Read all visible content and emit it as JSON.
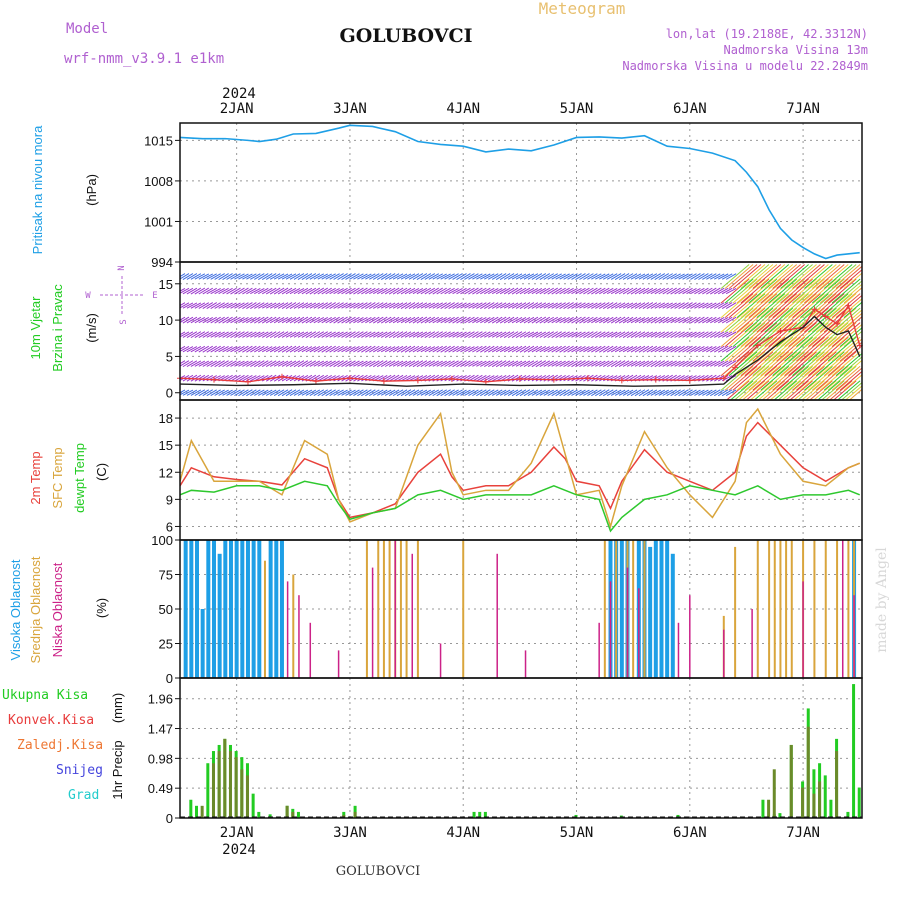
{
  "header": {
    "model_label": "Model",
    "model_name": "wrf-nmm_v3.9.1 e1km",
    "title": "GOLUBOVCI",
    "subtitle": "Meteogram",
    "lonlat": "lon,lat (19.2188E, 42.3312N)",
    "elevation": "Nadmorska Visina 13m",
    "model_elevation": "Nadmorska Visina u modelu 22.2849m",
    "footer_title": "GOLUBOVCI",
    "watermark": "made by Angel",
    "year": "2024"
  },
  "colors": {
    "pressure": "#1e9fe6",
    "temp2m": "#e8423c",
    "sfc_temp": "#d9a53c",
    "dewpoint": "#2ec82e",
    "wind_label": "#22cc22",
    "wind_speed": "#e83c3c",
    "wind_gust": "#222222",
    "barb": "#9933cc",
    "cloud_high": "#1e9fe6",
    "cloud_mid": "#d9a53c",
    "cloud_low": "#cc2288",
    "precip_total": "#22cc22",
    "precip_conv": "#e83c3c",
    "precip_frozen": "#ee7733",
    "snow": "#4444dd",
    "grad": "#22cccc"
  },
  "chart_data": [
    {
      "type": "line",
      "panel": "pressure",
      "ylabel": "Pritisak na nivou mora",
      "unit": "(hPa)",
      "ylim": [
        994,
        1018
      ],
      "yticks": [
        994,
        1001,
        1008,
        1015
      ],
      "x_days": [
        1.5,
        1.7,
        1.9,
        2.1,
        2.2,
        2.35,
        2.5,
        2.7,
        2.9,
        3.0,
        3.2,
        3.4,
        3.6,
        3.8,
        4.0,
        4.2,
        4.4,
        4.6,
        4.8,
        5.0,
        5.2,
        5.4,
        5.6,
        5.8,
        6.0,
        6.2,
        6.4,
        6.5,
        6.6,
        6.7,
        6.8,
        6.9,
        7.0,
        7.1,
        7.2,
        7.3,
        7.5
      ],
      "values": [
        1015.5,
        1015.3,
        1015.3,
        1015.0,
        1014.8,
        1015.2,
        1016.1,
        1016.2,
        1017.1,
        1017.6,
        1017.4,
        1016.5,
        1014.8,
        1014.3,
        1014.0,
        1013.0,
        1013.5,
        1013.2,
        1014.2,
        1015.5,
        1015.6,
        1015.4,
        1015.8,
        1014.0,
        1013.6,
        1012.8,
        1011.5,
        1009.5,
        1007.0,
        1003.0,
        999.8,
        997.8,
        996.5,
        995.4,
        994.6,
        995.2,
        995.6
      ]
    },
    {
      "type": "line",
      "panel": "wind",
      "ylabel": "10m Vjetar Brzina i Pravac",
      "unit": "(m/s)",
      "compass": {
        "n": "N",
        "e": "E",
        "w": "W",
        "s": "S"
      },
      "ylim": [
        -1,
        18
      ],
      "yticks": [
        0,
        5,
        10,
        15
      ],
      "series": [
        {
          "name": "speed",
          "x_days": [
            1.5,
            1.8,
            2.1,
            2.4,
            2.7,
            3.0,
            3.3,
            3.6,
            3.9,
            4.2,
            4.5,
            4.8,
            5.1,
            5.4,
            5.7,
            6.0,
            6.3,
            6.4,
            6.6,
            6.8,
            7.0,
            7.1,
            7.2,
            7.3,
            7.4,
            7.5
          ],
          "values": [
            2.0,
            1.8,
            1.5,
            2.2,
            1.6,
            2.0,
            1.6,
            1.7,
            1.9,
            1.5,
            1.9,
            1.8,
            2.0,
            1.7,
            1.8,
            1.7,
            2.0,
            3.5,
            6.5,
            8.5,
            9.0,
            11.5,
            10.5,
            9.5,
            12.0,
            6.5
          ]
        },
        {
          "name": "gust",
          "x_days": [
            1.5,
            2.0,
            2.5,
            3.0,
            3.5,
            4.0,
            4.5,
            5.0,
            5.5,
            6.0,
            6.3,
            6.4,
            6.6,
            6.8,
            7.0,
            7.1,
            7.2,
            7.3,
            7.4,
            7.5
          ],
          "values": [
            1.2,
            1.0,
            1.1,
            1.3,
            0.9,
            1.2,
            1.0,
            1.1,
            0.9,
            1.0,
            1.2,
            2.5,
            4.5,
            7.0,
            9.0,
            10.5,
            9.0,
            8.0,
            8.5,
            5.0
          ]
        }
      ]
    },
    {
      "type": "line",
      "panel": "temperature",
      "ylabels": [
        "2m Temp",
        "SFC Temp",
        "dewpt Temp"
      ],
      "unit": "(C)",
      "ylim": [
        4.5,
        20
      ],
      "yticks": [
        6,
        9,
        12,
        15,
        18
      ],
      "series": [
        {
          "name": "2m Temp",
          "x_days": [
            1.5,
            1.6,
            1.8,
            2.0,
            2.2,
            2.4,
            2.6,
            2.8,
            2.9,
            3.0,
            3.2,
            3.4,
            3.6,
            3.8,
            3.9,
            4.0,
            4.2,
            4.4,
            4.6,
            4.8,
            4.9,
            5.0,
            5.2,
            5.3,
            5.4,
            5.6,
            5.8,
            6.0,
            6.2,
            6.4,
            6.5,
            6.6,
            6.8,
            7.0,
            7.2,
            7.4,
            7.5
          ],
          "values": [
            10.5,
            12.5,
            11.5,
            11.2,
            11.0,
            10.6,
            13.5,
            12.5,
            9.0,
            7.0,
            7.5,
            8.5,
            12.0,
            14.0,
            11.5,
            10.0,
            10.5,
            10.5,
            12.0,
            14.8,
            13.5,
            11.0,
            10.5,
            8.0,
            11.0,
            14.5,
            12.0,
            11.0,
            10.0,
            12.0,
            16.0,
            17.5,
            15.0,
            12.5,
            11.0,
            12.5,
            13.0
          ]
        },
        {
          "name": "SFC Temp",
          "x_days": [
            1.5,
            1.6,
            1.8,
            2.0,
            2.2,
            2.4,
            2.6,
            2.8,
            2.9,
            3.0,
            3.2,
            3.4,
            3.6,
            3.8,
            3.9,
            4.0,
            4.2,
            4.4,
            4.6,
            4.8,
            4.9,
            5.0,
            5.2,
            5.3,
            5.4,
            5.6,
            5.8,
            6.0,
            6.2,
            6.4,
            6.5,
            6.6,
            6.8,
            7.0,
            7.2,
            7.4,
            7.5
          ],
          "values": [
            11.0,
            15.5,
            11.0,
            11.0,
            11.0,
            9.5,
            15.5,
            14.0,
            9.0,
            6.5,
            7.5,
            8.0,
            15.0,
            18.5,
            12.0,
            9.5,
            10.0,
            10.0,
            13.0,
            18.5,
            14.0,
            9.5,
            10.0,
            6.0,
            10.5,
            16.5,
            12.5,
            9.5,
            7.0,
            11.0,
            17.5,
            19.0,
            14.0,
            11.0,
            10.5,
            12.5,
            13.0
          ]
        },
        {
          "name": "dewpt Temp",
          "x_days": [
            1.5,
            1.6,
            1.8,
            2.0,
            2.2,
            2.4,
            2.6,
            2.8,
            2.9,
            3.0,
            3.2,
            3.4,
            3.6,
            3.8,
            3.9,
            4.0,
            4.2,
            4.4,
            4.6,
            4.8,
            4.9,
            5.0,
            5.2,
            5.3,
            5.4,
            5.6,
            5.8,
            6.0,
            6.2,
            6.4,
            6.5,
            6.6,
            6.8,
            7.0,
            7.2,
            7.4,
            7.5
          ],
          "values": [
            9.5,
            10.0,
            9.8,
            10.5,
            10.5,
            10.0,
            11.0,
            10.5,
            8.5,
            6.8,
            7.5,
            8.0,
            9.5,
            10.0,
            9.5,
            9.0,
            9.5,
            9.5,
            9.5,
            10.5,
            10.0,
            9.5,
            9.0,
            5.5,
            7.0,
            9.0,
            9.5,
            10.5,
            10.0,
            9.5,
            10.0,
            10.5,
            9.0,
            9.5,
            9.5,
            10.0,
            9.5
          ]
        }
      ]
    },
    {
      "type": "bar",
      "panel": "clouds",
      "ylabels": [
        "Visoka Oblacnost",
        "Srednja Oblacnost",
        "Niska Oblacnost"
      ],
      "unit": "(%)",
      "ylim": [
        0,
        100
      ],
      "yticks": [
        0,
        25,
        50,
        75,
        100
      ],
      "series": [
        {
          "name": "Visoka Oblacnost",
          "x_days": [
            1.55,
            1.6,
            1.65,
            1.7,
            1.75,
            1.8,
            1.85,
            1.9,
            1.95,
            2.0,
            2.05,
            2.1,
            2.15,
            2.2,
            2.3,
            2.35,
            2.4,
            5.3,
            5.35,
            5.4,
            5.45,
            5.55,
            5.6,
            5.65,
            5.7,
            5.75,
            5.8,
            5.85,
            7.45
          ],
          "values": [
            100,
            100,
            100,
            50,
            100,
            100,
            90,
            100,
            100,
            100,
            100,
            100,
            100,
            100,
            100,
            100,
            100,
            100,
            100,
            100,
            100,
            100,
            100,
            95,
            100,
            100,
            100,
            90,
            100
          ]
        },
        {
          "name": "Srednja Oblacnost",
          "x_days": [
            2.25,
            2.5,
            3.15,
            3.25,
            3.3,
            3.35,
            3.4,
            3.45,
            3.5,
            3.6,
            4.0,
            5.25,
            5.35,
            5.45,
            5.5,
            5.6,
            6.3,
            6.4,
            6.6,
            6.7,
            6.75,
            6.8,
            6.85,
            6.9,
            7.0,
            7.1,
            7.2,
            7.3,
            7.4,
            7.45
          ],
          "values": [
            85,
            75,
            100,
            100,
            100,
            100,
            100,
            100,
            100,
            100,
            100,
            100,
            100,
            100,
            100,
            100,
            45,
            95,
            100,
            100,
            100,
            100,
            100,
            100,
            100,
            100,
            100,
            100,
            100,
            100
          ]
        },
        {
          "name": "Niska Oblacnost",
          "x_days": [
            2.45,
            2.55,
            2.65,
            2.9,
            3.2,
            3.4,
            3.55,
            3.8,
            4.3,
            4.55,
            5.2,
            5.3,
            5.45,
            5.55,
            5.9,
            6.0,
            6.3,
            6.55,
            7.0,
            7.35,
            7.45
          ],
          "values": [
            70,
            60,
            40,
            20,
            80,
            100,
            90,
            25,
            90,
            20,
            40,
            70,
            80,
            65,
            40,
            60,
            35,
            50,
            70,
            100,
            60
          ]
        }
      ]
    },
    {
      "type": "bar",
      "panel": "precip",
      "ylabel": "1hr Precip",
      "unit": "(mm)",
      "legend": [
        "Ukupna Kisa",
        "Konvek.Kisa",
        "Zaledj.Kisa",
        "Snijeg",
        "Grad"
      ],
      "ylim": [
        0,
        2.3
      ],
      "yticks": [
        0,
        0.49,
        0.98,
        1.47,
        1.96
      ],
      "series": [
        {
          "name": "Ukupna Kisa",
          "x_days": [
            1.6,
            1.65,
            1.75,
            1.8,
            1.85,
            1.9,
            1.95,
            2.0,
            2.05,
            2.1,
            2.15,
            2.2,
            2.3,
            2.45,
            2.5,
            2.55,
            2.95,
            3.05,
            4.1,
            4.15,
            4.2,
            5.0,
            5.4,
            5.9,
            6.65,
            6.75,
            6.8,
            6.9,
            7.0,
            7.05,
            7.1,
            7.15,
            7.2,
            7.25,
            7.3,
            7.4,
            7.45,
            7.5
          ],
          "values": [
            0.3,
            0.2,
            0.9,
            1.1,
            1.2,
            1.3,
            1.2,
            1.1,
            1.0,
            0.9,
            0.4,
            0.1,
            0.06,
            0.2,
            0.15,
            0.1,
            0.1,
            0.2,
            0.1,
            0.1,
            0.1,
            0.05,
            0.04,
            0.05,
            0.3,
            0.06,
            0.08,
            1.2,
            0.6,
            1.8,
            0.8,
            0.9,
            0.7,
            0.3,
            1.3,
            0.1,
            2.2,
            0.5
          ]
        },
        {
          "name": "Konvek.Kisa",
          "x_days": [
            1.7,
            1.8,
            1.85,
            1.9,
            1.95,
            2.0,
            2.05,
            2.1,
            2.45,
            2.5,
            2.95,
            3.05,
            6.7,
            6.75,
            6.9,
            7.0,
            7.05,
            7.1,
            7.15,
            7.3
          ],
          "values": [
            0.2,
            0.9,
            1.1,
            1.3,
            1.1,
            1.0,
            0.8,
            0.7,
            0.2,
            0.1,
            0.05,
            0.1,
            0.3,
            0.8,
            1.2,
            0.5,
            1.5,
            0.4,
            0.6,
            1.1
          ]
        }
      ]
    }
  ],
  "x_axis": {
    "top_labels": [
      "2JAN",
      "3JAN",
      "4JAN",
      "5JAN",
      "6JAN",
      "7JAN"
    ],
    "bottom_labels": [
      "2JAN",
      "3JAN",
      "4JAN",
      "5JAN",
      "6JAN",
      "7JAN"
    ]
  }
}
